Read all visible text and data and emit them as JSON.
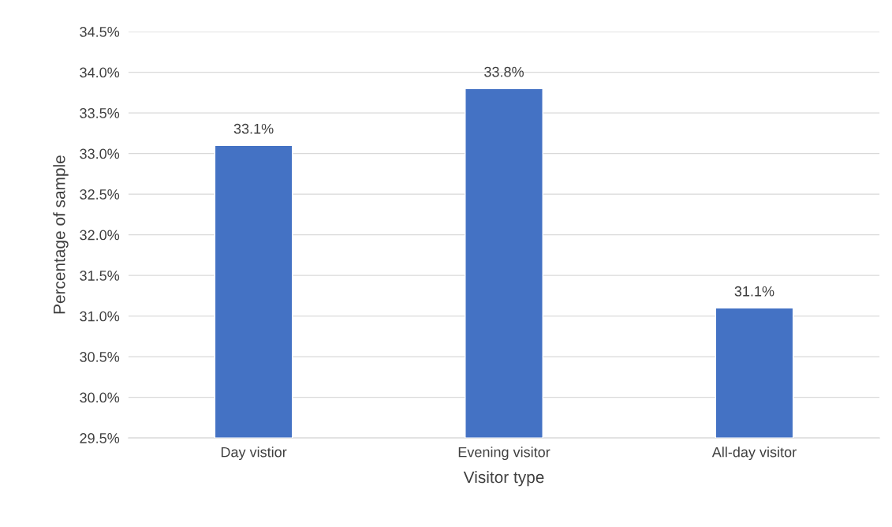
{
  "chart_data": {
    "type": "bar",
    "xlabel": "Visitor type",
    "ylabel": "Percentage of sample",
    "categories": [
      "Day vistior",
      "Evening visitor",
      "All-day visitor"
    ],
    "values": [
      33.1,
      33.8,
      31.1
    ],
    "color": "#4472c4",
    "value_labels": [
      "33.1%",
      "33.8%",
      "31.1%"
    ],
    "ylim": [
      29.5,
      34.5
    ],
    "yticks": [
      {
        "value": 29.5,
        "label": "29.5%"
      },
      {
        "value": 30.0,
        "label": "30.0%"
      },
      {
        "value": 30.5,
        "label": "30.5%"
      },
      {
        "value": 31.0,
        "label": "31.0%"
      },
      {
        "value": 31.5,
        "label": "31.5%"
      },
      {
        "value": 32.0,
        "label": "32.0%"
      },
      {
        "value": 32.5,
        "label": "32.5%"
      },
      {
        "value": 33.0,
        "label": "33.0%"
      },
      {
        "value": 33.5,
        "label": "33.5%"
      },
      {
        "value": 34.0,
        "label": "34.0%"
      },
      {
        "value": 34.5,
        "label": "34.5%"
      }
    ],
    "grid": "y",
    "legend": false
  }
}
